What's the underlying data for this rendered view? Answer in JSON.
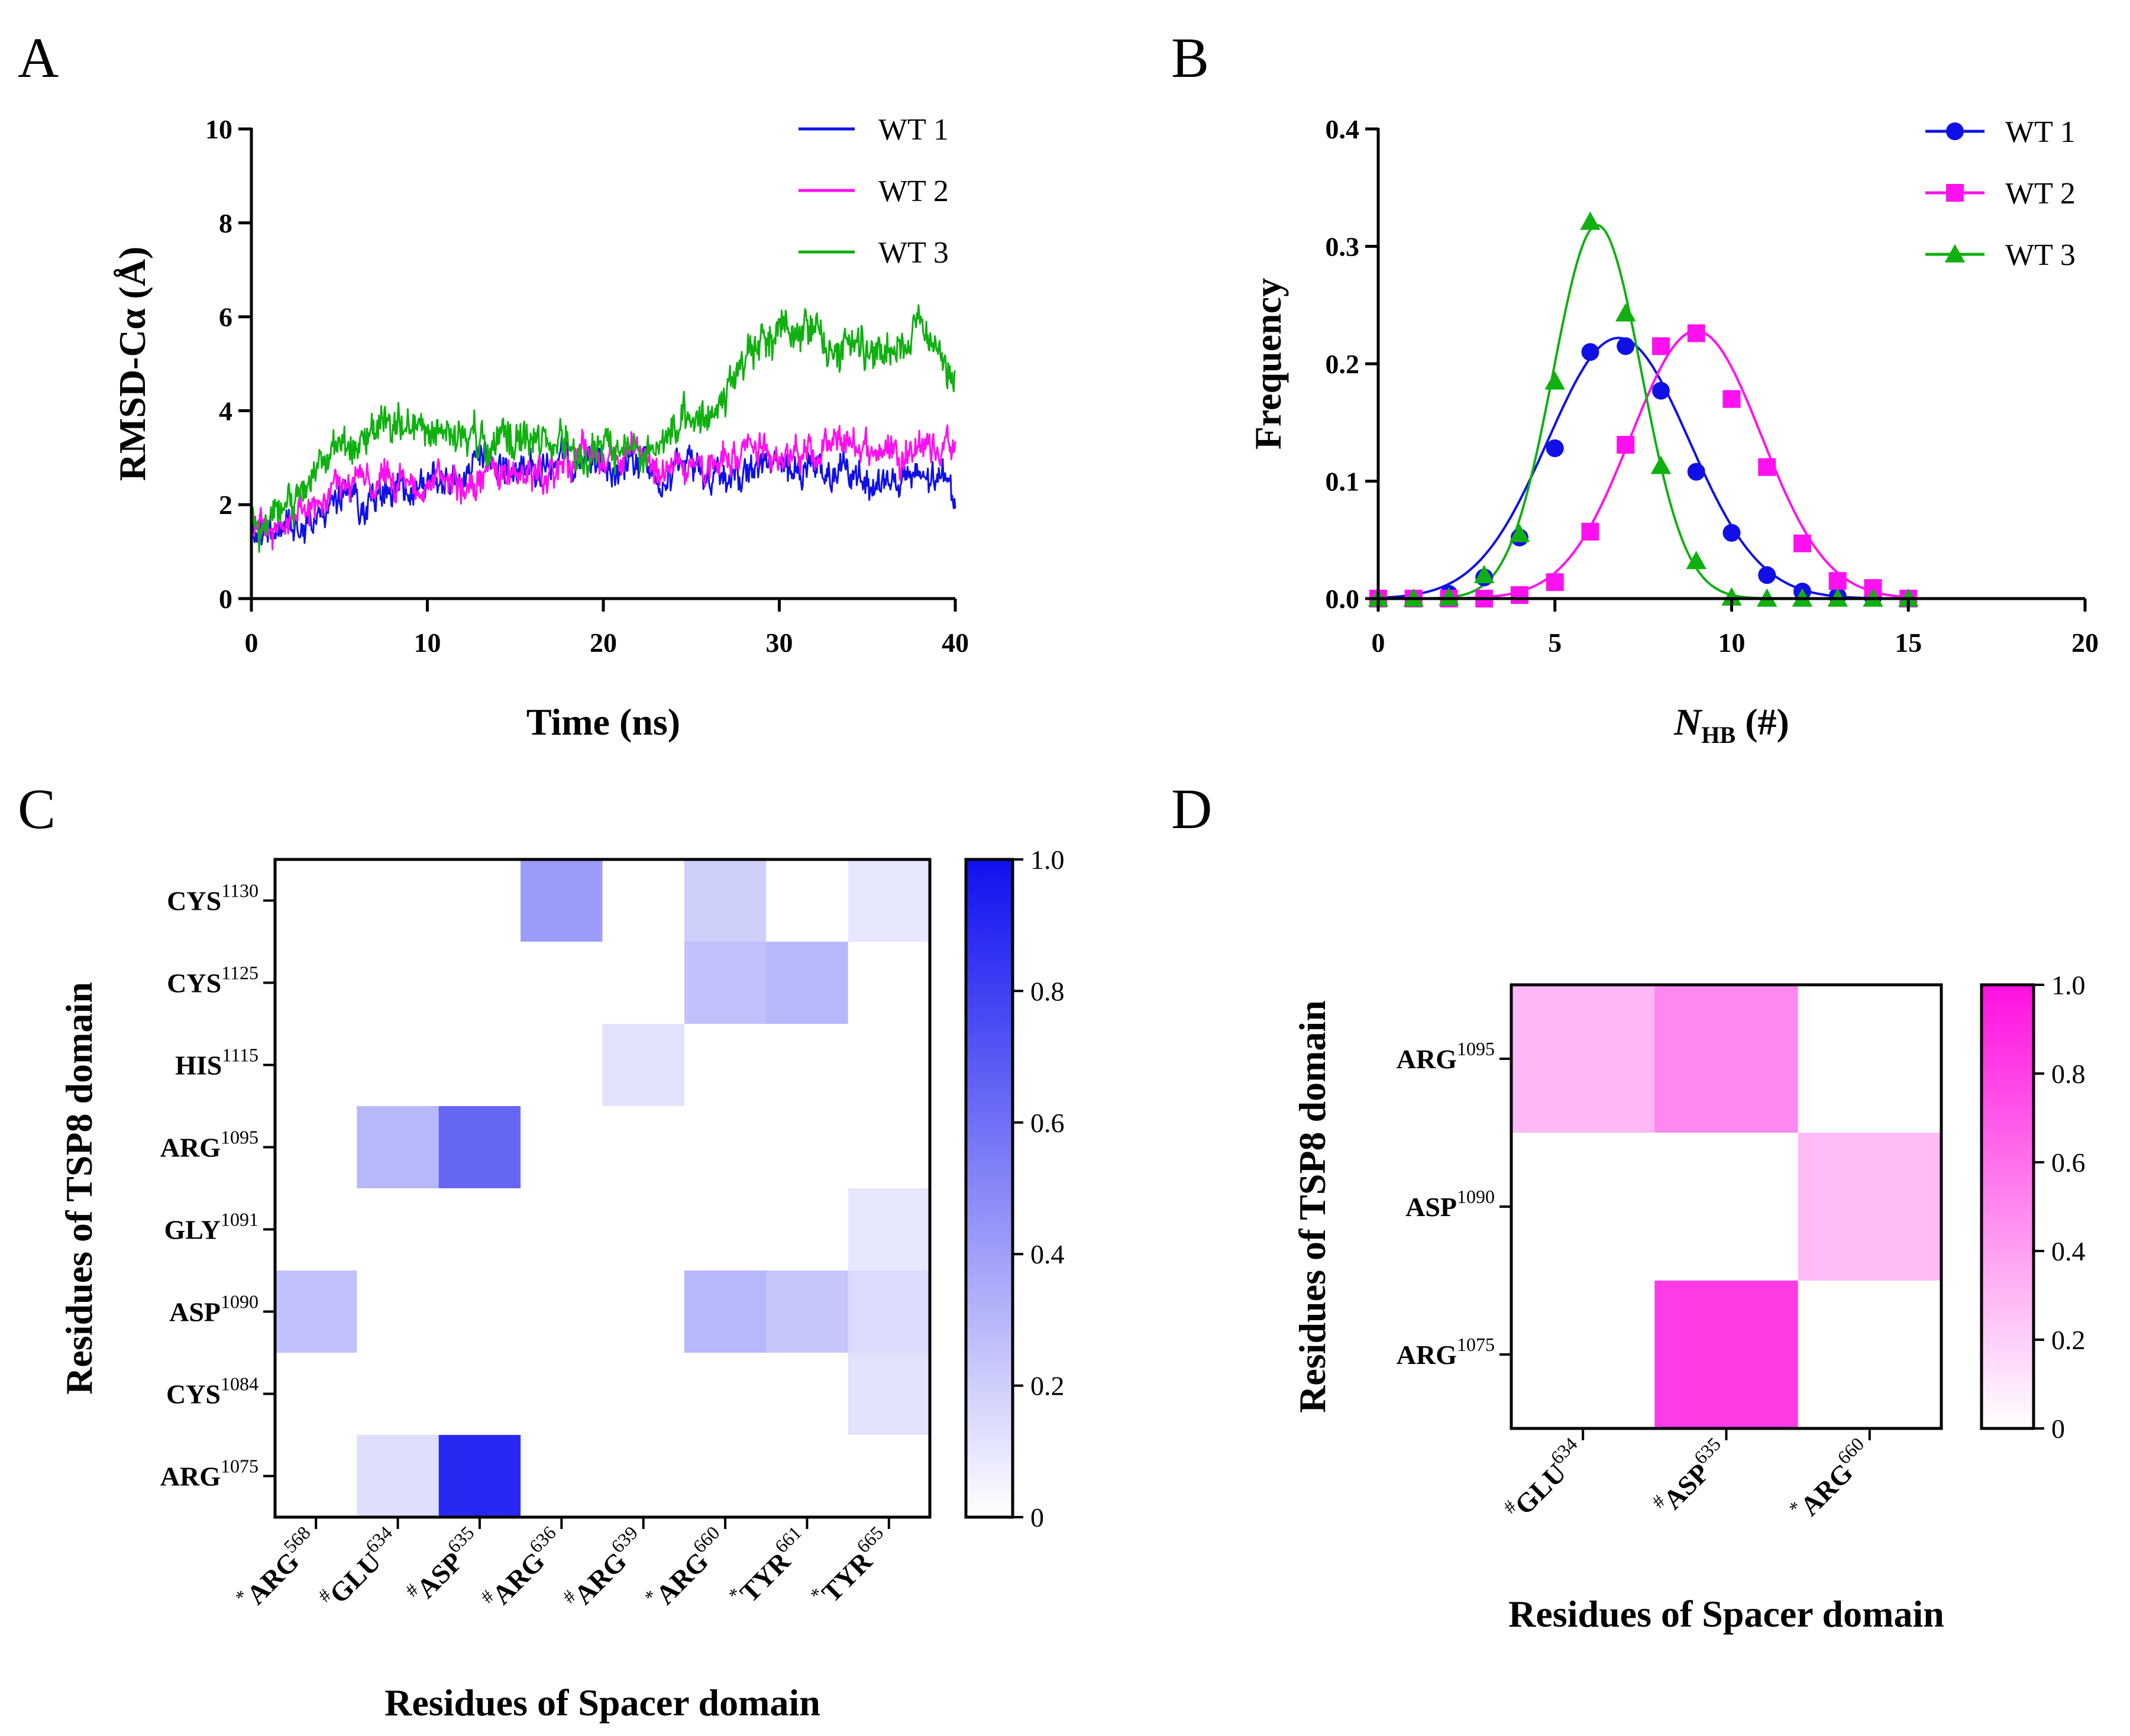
{
  "panels": {
    "A": {
      "label": "A"
    },
    "B": {
      "label": "B"
    },
    "C": {
      "label": "C"
    },
    "D": {
      "label": "D"
    }
  },
  "chart_data": [
    {
      "panel": "A",
      "type": "line",
      "xlabel": "Time (ns)",
      "ylabel": "RMSD-Cα (Å)",
      "xlim": [
        0,
        40
      ],
      "ylim": [
        0,
        10
      ],
      "xticks": [
        0,
        10,
        20,
        30,
        40
      ],
      "yticks": [
        0,
        2,
        4,
        6,
        8,
        10
      ],
      "legend_position": "top-right",
      "series": [
        {
          "name": "WT 1",
          "color": "#1010e6",
          "x": [
            0,
            2,
            4,
            6,
            8,
            10,
            12,
            14,
            16,
            18,
            20,
            22,
            24,
            26,
            28,
            30,
            32,
            34,
            36,
            38,
            40
          ],
          "y": [
            1.2,
            1.6,
            1.9,
            2.1,
            2.2,
            2.4,
            2.6,
            2.7,
            2.8,
            2.8,
            2.9,
            2.9,
            2.8,
            2.7,
            2.7,
            2.8,
            2.6,
            2.6,
            2.5,
            2.5,
            2.4
          ]
        },
        {
          "name": "WT 2",
          "color": "#ff10f0",
          "x": [
            0,
            2,
            4,
            6,
            8,
            10,
            12,
            14,
            16,
            18,
            20,
            22,
            24,
            26,
            28,
            30,
            32,
            34,
            36,
            38,
            40
          ],
          "y": [
            1.3,
            1.6,
            2.1,
            2.6,
            2.3,
            2.3,
            2.5,
            2.7,
            2.7,
            3.0,
            2.9,
            3.0,
            2.9,
            3.0,
            3.1,
            3.2,
            3.0,
            3.3,
            3.2,
            3.3,
            3.2
          ]
        },
        {
          "name": "WT 3",
          "color": "#10b010",
          "x": [
            0,
            2,
            4,
            6,
            8,
            10,
            12,
            14,
            16,
            18,
            20,
            22,
            24,
            26,
            28,
            30,
            32,
            34,
            36,
            38,
            40
          ],
          "y": [
            1.5,
            2.0,
            2.8,
            3.3,
            3.7,
            3.4,
            3.5,
            3.3,
            3.4,
            3.3,
            3.0,
            3.1,
            3.4,
            4.2,
            5.0,
            5.8,
            5.6,
            5.4,
            5.3,
            5.8,
            5.0
          ]
        }
      ]
    },
    {
      "panel": "B",
      "type": "scatter",
      "xlabel": "N",
      "xlabel_sub": "HB",
      "xlabel_unit": "(#)",
      "ylabel": "Frequency",
      "xlim": [
        0,
        20
      ],
      "ylim": [
        0,
        0.4
      ],
      "xticks": [
        "0",
        "5",
        "10",
        "15",
        "20"
      ],
      "yticks": [
        "0.0",
        "0.1",
        "0.2",
        "0.3",
        "0.4"
      ],
      "legend_position": "top-right",
      "fit": "gaussian",
      "series": [
        {
          "name": "WT 1",
          "marker": "circle",
          "color": "#1010e6",
          "x": [
            0,
            1,
            2,
            3,
            4,
            5,
            6,
            7,
            8,
            9,
            10,
            11,
            12,
            13,
            14,
            15
          ],
          "y": [
            0.0,
            0.0,
            0.004,
            0.018,
            0.052,
            0.128,
            0.21,
            0.215,
            0.177,
            0.108,
            0.056,
            0.02,
            0.006,
            0.002,
            0.001,
            0.0
          ],
          "fit_params": {
            "amp": 0.222,
            "mu": 6.8,
            "sigma": 2.0
          }
        },
        {
          "name": "WT 2",
          "marker": "square",
          "color": "#ff10f0",
          "x": [
            0,
            1,
            2,
            3,
            4,
            5,
            6,
            7,
            8,
            9,
            10,
            11,
            12,
            13,
            14,
            15
          ],
          "y": [
            0.0,
            0.0,
            0.0,
            0.0,
            0.003,
            0.014,
            0.057,
            0.131,
            0.215,
            0.226,
            0.17,
            0.112,
            0.047,
            0.015,
            0.009,
            0.0
          ],
          "fit_params": {
            "amp": 0.228,
            "mu": 9.0,
            "sigma": 1.85
          }
        },
        {
          "name": "WT 3",
          "marker": "triangle",
          "color": "#10b010",
          "x": [
            0,
            1,
            2,
            3,
            4,
            5,
            6,
            7,
            8,
            9,
            10,
            11,
            12,
            13,
            14,
            15
          ],
          "y": [
            0.0,
            0.0,
            0.001,
            0.02,
            0.055,
            0.185,
            0.321,
            0.243,
            0.113,
            0.032,
            0.001,
            0.0,
            0.0,
            0.0,
            0.0,
            0.0
          ],
          "fit_params": {
            "amp": 0.318,
            "mu": 6.2,
            "sigma": 1.25
          }
        }
      ]
    },
    {
      "panel": "C",
      "type": "heatmap",
      "xlabel": "Residues of Spacer domain",
      "ylabel": "Residues of TSP8 domain",
      "color": "#1010f0",
      "colorbar_ticks": [
        "0",
        "0.2",
        "0.4",
        "0.6",
        "0.8",
        "1.0"
      ],
      "colorbar_range": [
        0,
        1
      ],
      "rows": [
        {
          "name": "CYS",
          "sup": "1130"
        },
        {
          "name": "CYS",
          "sup": "1125"
        },
        {
          "name": "HIS",
          "sup": "1115"
        },
        {
          "name": "ARG",
          "sup": "1095"
        },
        {
          "name": "GLY",
          "sup": "1091"
        },
        {
          "name": "ASP",
          "sup": "1090"
        },
        {
          "name": "CYS",
          "sup": "1084"
        },
        {
          "name": "ARG",
          "sup": "1075"
        }
      ],
      "columns": [
        {
          "prefix": "*",
          "name": "ARG",
          "sup": "568"
        },
        {
          "prefix": "#",
          "name": "GLU",
          "sup": "634"
        },
        {
          "prefix": "#",
          "name": "ASP",
          "sup": "635"
        },
        {
          "prefix": "#",
          "name": "ARG",
          "sup": "636"
        },
        {
          "prefix": "#",
          "name": "ARG",
          "sup": "639"
        },
        {
          "prefix": "*",
          "name": "ARG",
          "sup": "660"
        },
        {
          "prefix": "*",
          "name": "TYR",
          "sup": "661"
        },
        {
          "prefix": "*",
          "name": "TYR",
          "sup": "665"
        }
      ],
      "values": [
        [
          0,
          0,
          0,
          0.42,
          0,
          0.2,
          0,
          0.1
        ],
        [
          0,
          0,
          0,
          0,
          0,
          0.26,
          0.3,
          0
        ],
        [
          0,
          0,
          0,
          0,
          0.12,
          0,
          0,
          0
        ],
        [
          0,
          0.3,
          0.64,
          0,
          0,
          0,
          0,
          0
        ],
        [
          0,
          0,
          0,
          0,
          0,
          0,
          0,
          0.1
        ],
        [
          0.26,
          0,
          0,
          0,
          0,
          0.3,
          0.24,
          0.15
        ],
        [
          0,
          0,
          0,
          0,
          0,
          0,
          0,
          0.12
        ],
        [
          0,
          0.14,
          0.9,
          0,
          0,
          0,
          0,
          0
        ]
      ]
    },
    {
      "panel": "D",
      "type": "heatmap",
      "xlabel": "Residues of Spacer domain",
      "ylabel": "Residues of TSP8 domain",
      "color": "#ff10e0",
      "colorbar_ticks": [
        "0",
        "0.2",
        "0.4",
        "0.6",
        "0.8",
        "1.0"
      ],
      "colorbar_range": [
        0,
        1
      ],
      "rows": [
        {
          "name": "ARG",
          "sup": "1095"
        },
        {
          "name": "ASP",
          "sup": "1090"
        },
        {
          "name": "ARG",
          "sup": "1075"
        }
      ],
      "columns": [
        {
          "prefix": "#",
          "name": "GLU",
          "sup": "634"
        },
        {
          "prefix": "#",
          "name": "ASP",
          "sup": "635"
        },
        {
          "prefix": "*",
          "name": "ARG",
          "sup": "660"
        }
      ],
      "values": [
        [
          0.3,
          0.5,
          0
        ],
        [
          0,
          0,
          0.28
        ],
        [
          0,
          0.82,
          0
        ]
      ]
    }
  ]
}
